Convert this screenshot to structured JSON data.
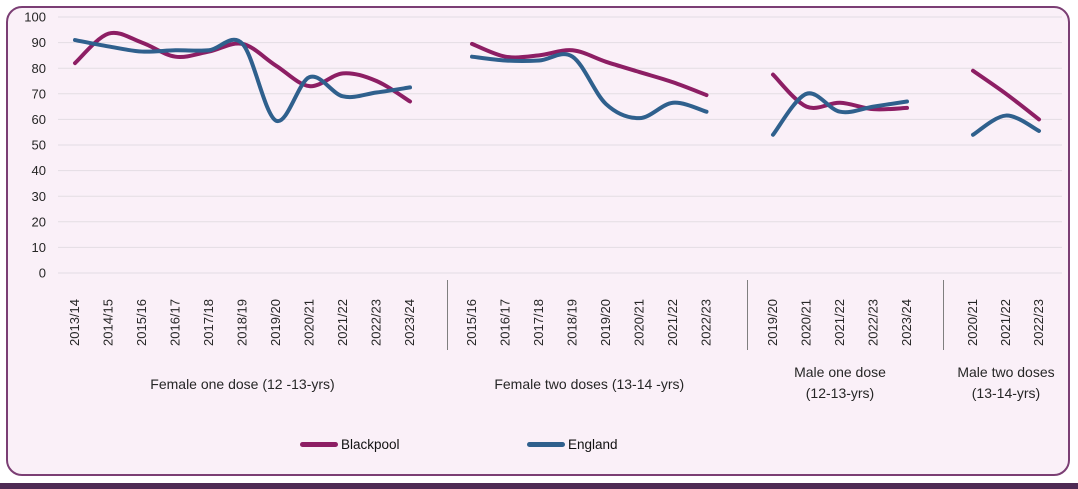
{
  "colors": {
    "blackpool": "#8d1e64",
    "england": "#2f608d",
    "frame_border": "#7b3e74",
    "plot_background": "#faf0f8",
    "bottom_bar": "#4e2a54",
    "gridline": "#e3dde3",
    "separator": "#7f7f7f",
    "tick_text": "#262626"
  },
  "legend": [
    {
      "label": "Blackpool",
      "color_key": "blackpool"
    },
    {
      "label": "England",
      "color_key": "england"
    }
  ],
  "chart_data": {
    "type": "line",
    "title": "",
    "ylabel": "",
    "xlabel": "",
    "grid": true,
    "legend_position": "bottom",
    "y_axis": {
      "min": 0,
      "max": 100,
      "step": 10,
      "tick_labels": [
        "0",
        "10",
        "20",
        "30",
        "40",
        "50",
        "60",
        "70",
        "80",
        "90",
        "100"
      ]
    },
    "series_names": [
      "Blackpool",
      "England"
    ],
    "panels": [
      {
        "group_label_lines": [
          "Female one dose (12 -13-yrs)"
        ],
        "years": [
          "2013/14",
          "2014/15",
          "2015/16",
          "2016/17",
          "2017/18",
          "2018/19",
          "2019/20",
          "2020/21",
          "2021/22",
          "2022/23",
          "2023/24"
        ],
        "series": {
          "Blackpool": [
            82,
            93.5,
            90,
            84.5,
            86.5,
            89.5,
            81,
            73,
            78,
            75,
            67
          ],
          "England": [
            91,
            88.5,
            86.5,
            87,
            87,
            89.5,
            59.5,
            76.5,
            69,
            70.5,
            72.5
          ]
        }
      },
      {
        "group_label_lines": [
          "Female two doses (13-14 -yrs)"
        ],
        "years": [
          "2015/16",
          "2016/17",
          "2017/18",
          "2018/19",
          "2019/20",
          "2020/21",
          "2021/22",
          "2022/23"
        ],
        "series": {
          "Blackpool": [
            89.5,
            84.5,
            85,
            87,
            82.5,
            78.5,
            74.5,
            69.5
          ],
          "England": [
            84.5,
            83,
            83,
            84.5,
            66,
            60.5,
            66.5,
            63
          ]
        }
      },
      {
        "group_label_lines": [
          "Male one dose",
          "(12-13-yrs)"
        ],
        "years": [
          "2019/20",
          "2020/21",
          "2021/22",
          "2022/23",
          "2023/24"
        ],
        "series": {
          "Blackpool": [
            77.5,
            65,
            66.5,
            64,
            64.5
          ],
          "England": [
            54,
            70,
            63,
            65,
            67
          ]
        }
      },
      {
        "group_label_lines": [
          "Male two doses",
          "(13-14-yrs)"
        ],
        "years": [
          "2020/21",
          "2021/22",
          "2022/23"
        ],
        "series": {
          "Blackpool": [
            79,
            70,
            60
          ],
          "England": [
            54,
            61.5,
            55.5
          ]
        }
      }
    ]
  }
}
